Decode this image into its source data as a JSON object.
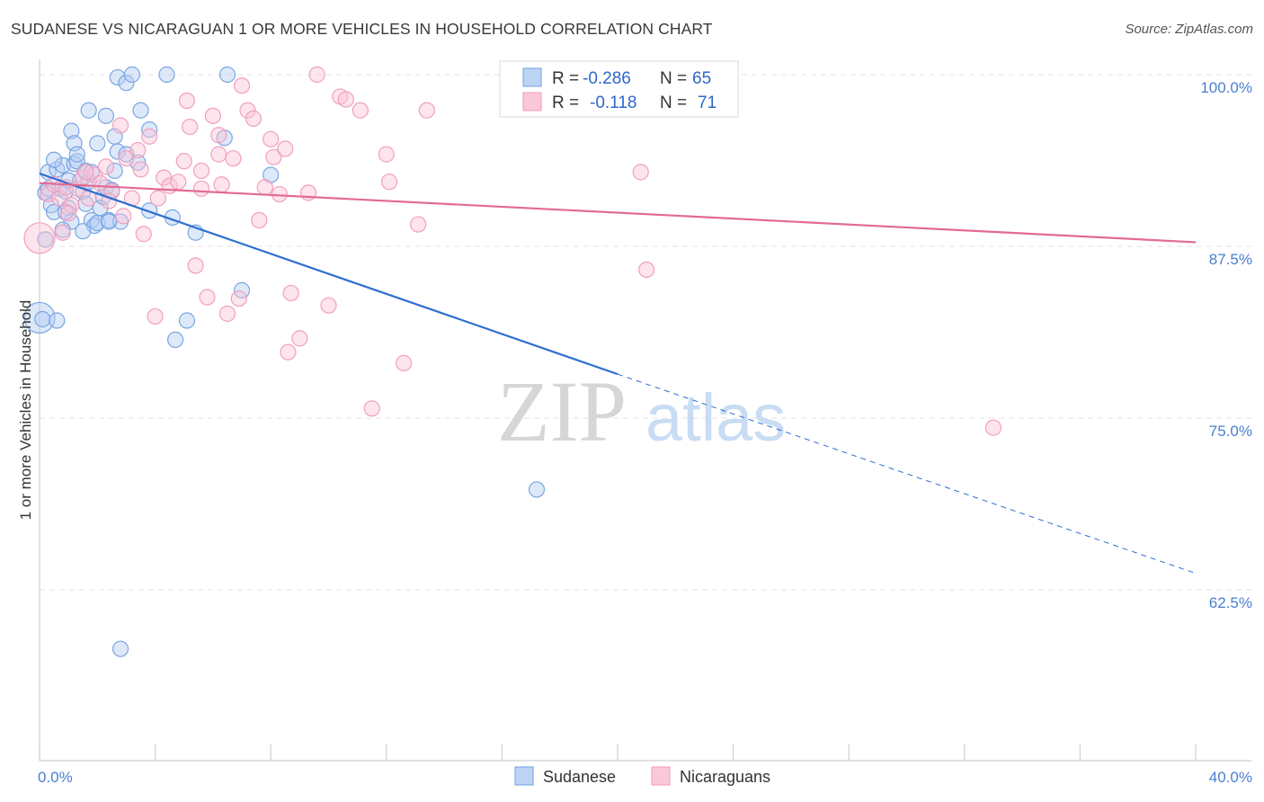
{
  "title": "SUDANESE VS NICARAGUAN 1 OR MORE VEHICLES IN HOUSEHOLD CORRELATION CHART",
  "source": "Source: ZipAtlas.com",
  "watermark": {
    "zip": "ZIP",
    "atlas": "atlas"
  },
  "legend_box": {
    "rows": [
      {
        "r_label": "R =",
        "r_value": "-0.286",
        "n_label": "N =",
        "n_value": "65"
      },
      {
        "r_label": "R =",
        "r_value": "-0.118",
        "n_label": "N =",
        "n_value": "71"
      }
    ]
  },
  "chart_data": {
    "type": "scatter",
    "ylabel": "1 or more Vehicles in Household",
    "xlim": [
      0,
      40
    ],
    "ylim": [
      52.5,
      101.5
    ],
    "x_ticks": [
      "0.0%",
      "40.0%"
    ],
    "y_ticks": [
      {
        "value": 100,
        "label": "100.0%"
      },
      {
        "value": 87.5,
        "label": "87.5%"
      },
      {
        "value": 75,
        "label": "75.0%"
      },
      {
        "value": 62.5,
        "label": "62.5%"
      }
    ],
    "grid": true,
    "legend_position": "bottom",
    "colors": {
      "sudanese": "#6f9fe0",
      "nicaraguans": "#f29ab8",
      "sudanese_line": "#2f6fd0",
      "nicaraguans_line": "#e36a93"
    },
    "series": [
      {
        "name": "Sudanese",
        "trend": {
          "x0": 0.0,
          "y0": 92.8,
          "x1": 20.0,
          "y1": 78.2,
          "dash_to_x": 40.0,
          "dash_to_y": 63.7
        },
        "points": [
          [
            0.2,
            91.4
          ],
          [
            0.3,
            92.9
          ],
          [
            0.4,
            90.5
          ],
          [
            0.5,
            90.0
          ],
          [
            0.6,
            93.1
          ],
          [
            0.7,
            91.7
          ],
          [
            0.8,
            93.4
          ],
          [
            0.9,
            91.5
          ],
          [
            1.0,
            90.3
          ],
          [
            1.1,
            89.3
          ],
          [
            1.2,
            93.5
          ],
          [
            1.3,
            93.7
          ],
          [
            1.4,
            92.3
          ],
          [
            1.5,
            91.5
          ],
          [
            1.6,
            93.0
          ],
          [
            1.7,
            92.2
          ],
          [
            1.8,
            89.4
          ],
          [
            1.9,
            89.0
          ],
          [
            2.0,
            89.2
          ],
          [
            2.1,
            90.3
          ],
          [
            2.2,
            91.1
          ],
          [
            2.3,
            91.8
          ],
          [
            2.4,
            89.4
          ],
          [
            2.5,
            91.6
          ],
          [
            2.6,
            93.0
          ],
          [
            2.7,
            94.4
          ],
          [
            2.8,
            89.3
          ],
          [
            1.1,
            95.9
          ],
          [
            1.2,
            95.0
          ],
          [
            1.3,
            94.2
          ],
          [
            1.7,
            97.4
          ],
          [
            2.0,
            95.0
          ],
          [
            2.3,
            97.0
          ],
          [
            2.6,
            95.5
          ],
          [
            2.7,
            99.8
          ],
          [
            3.0,
            99.4
          ],
          [
            3.2,
            100.0
          ],
          [
            3.5,
            97.4
          ],
          [
            3.8,
            96.0
          ],
          [
            4.4,
            100.0
          ],
          [
            3.4,
            93.6
          ],
          [
            3.0,
            94.2
          ],
          [
            4.6,
            89.6
          ],
          [
            5.4,
            88.5
          ],
          [
            6.4,
            95.4
          ],
          [
            6.5,
            100.0
          ],
          [
            8.0,
            92.7
          ],
          [
            7.0,
            84.3
          ],
          [
            5.1,
            82.1
          ],
          [
            4.7,
            80.7
          ],
          [
            0.1,
            82.2
          ],
          [
            0.6,
            82.1
          ],
          [
            2.8,
            58.2
          ],
          [
            17.2,
            69.8
          ],
          [
            0.2,
            88.0
          ],
          [
            0.8,
            88.7
          ],
          [
            1.5,
            88.6
          ],
          [
            0.3,
            91.7
          ],
          [
            0.9,
            90.0
          ],
          [
            1.8,
            92.9
          ],
          [
            3.8,
            90.1
          ],
          [
            2.4,
            89.3
          ],
          [
            0.5,
            93.8
          ],
          [
            1.0,
            92.3
          ],
          [
            1.6,
            90.6
          ]
        ],
        "big_point": [
          0.0,
          82.3
        ]
      },
      {
        "name": "Nicaraguans",
        "trend": {
          "x0": 0.0,
          "y0": 92.1,
          "x1": 40.0,
          "y1": 87.8
        },
        "points": [
          [
            0.3,
            91.3
          ],
          [
            0.5,
            92.0
          ],
          [
            0.7,
            91.0
          ],
          [
            0.9,
            91.8
          ],
          [
            1.1,
            90.5
          ],
          [
            1.3,
            91.7
          ],
          [
            1.5,
            92.5
          ],
          [
            1.7,
            91.0
          ],
          [
            1.9,
            92.7
          ],
          [
            2.1,
            92.1
          ],
          [
            2.3,
            93.3
          ],
          [
            2.5,
            91.5
          ],
          [
            2.8,
            96.3
          ],
          [
            3.0,
            93.9
          ],
          [
            3.2,
            91.0
          ],
          [
            3.4,
            94.5
          ],
          [
            3.6,
            88.4
          ],
          [
            3.8,
            95.5
          ],
          [
            4.1,
            91.0
          ],
          [
            4.3,
            92.5
          ],
          [
            4.5,
            91.9
          ],
          [
            4.8,
            92.2
          ],
          [
            5.0,
            93.7
          ],
          [
            5.1,
            98.1
          ],
          [
            5.2,
            96.2
          ],
          [
            5.4,
            86.1
          ],
          [
            5.6,
            93.0
          ],
          [
            5.8,
            83.8
          ],
          [
            6.0,
            97.0
          ],
          [
            6.2,
            95.6
          ],
          [
            6.3,
            92.0
          ],
          [
            6.5,
            82.6
          ],
          [
            6.7,
            93.9
          ],
          [
            6.9,
            83.7
          ],
          [
            7.0,
            99.2
          ],
          [
            7.2,
            97.4
          ],
          [
            7.4,
            96.8
          ],
          [
            7.6,
            89.4
          ],
          [
            7.8,
            91.8
          ],
          [
            8.0,
            95.3
          ],
          [
            8.1,
            94.0
          ],
          [
            8.3,
            91.3
          ],
          [
            8.5,
            94.6
          ],
          [
            8.7,
            84.1
          ],
          [
            9.0,
            80.8
          ],
          [
            9.3,
            91.4
          ],
          [
            9.6,
            100.0
          ],
          [
            10.4,
            98.4
          ],
          [
            10.6,
            98.2
          ],
          [
            11.1,
            97.4
          ],
          [
            11.5,
            75.7
          ],
          [
            12.0,
            94.2
          ],
          [
            12.1,
            92.2
          ],
          [
            12.6,
            79.0
          ],
          [
            13.1,
            89.1
          ],
          [
            13.4,
            97.4
          ],
          [
            8.6,
            79.8
          ],
          [
            10.0,
            83.2
          ],
          [
            20.8,
            92.9
          ],
          [
            21.0,
            85.8
          ],
          [
            23.8,
            100.0
          ],
          [
            33.0,
            74.3
          ],
          [
            2.4,
            90.8
          ],
          [
            1.0,
            89.9
          ],
          [
            4.0,
            82.4
          ],
          [
            6.2,
            94.2
          ],
          [
            3.5,
            93.1
          ],
          [
            0.8,
            88.5
          ],
          [
            1.6,
            92.9
          ],
          [
            2.9,
            89.7
          ],
          [
            5.6,
            91.7
          ]
        ],
        "big_point": [
          0.0,
          88.1
        ]
      }
    ]
  },
  "bottom_legend": [
    "Sudanese",
    "Nicaraguans"
  ]
}
